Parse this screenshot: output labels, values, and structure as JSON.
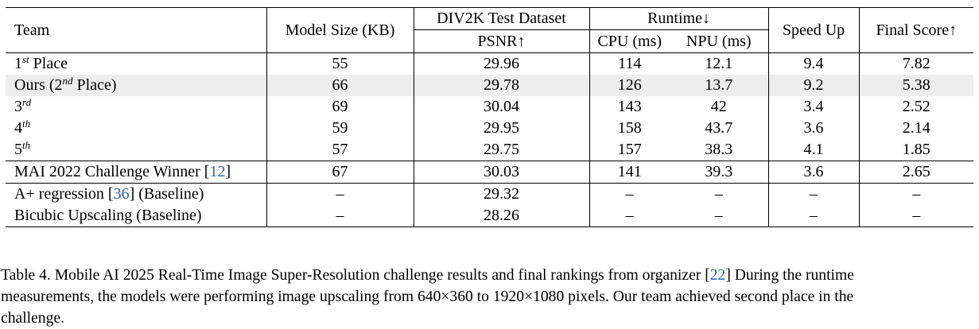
{
  "table": {
    "headers": {
      "team": "Team",
      "model_size": "Model Size (KB)",
      "dataset": "DIV2K Test Dataset",
      "psnr": "PSNR↑",
      "runtime": "Runtime↓",
      "cpu": "CPU (ms)",
      "npu": "NPU (ms)",
      "speed_up": "Speed Up",
      "final_score": "Final Score↑"
    },
    "rows": [
      {
        "team_base": "1",
        "team_sup": "st",
        "team_suffix": " Place",
        "size": "55",
        "psnr": "29.96",
        "cpu": "114",
        "npu": "12.1",
        "speed": "9.4",
        "score": "7.82"
      },
      {
        "team_base": "Ours (2",
        "team_sup": "nd",
        "team_suffix": " Place)",
        "size": "66",
        "psnr": "29.78",
        "cpu": "126",
        "npu": "13.7",
        "speed": "9.2",
        "score": "5.38"
      },
      {
        "team_base": "3",
        "team_sup": "rd",
        "team_suffix": "",
        "size": "69",
        "psnr": "30.04",
        "cpu": "143",
        "npu": "42",
        "speed": "3.4",
        "score": "2.52"
      },
      {
        "team_base": "4",
        "team_sup": "th",
        "team_suffix": "",
        "size": "59",
        "psnr": "29.95",
        "cpu": "158",
        "npu": "43.7",
        "speed": "3.6",
        "score": "2.14"
      },
      {
        "team_base": "5",
        "team_sup": "th",
        "team_suffix": "",
        "size": "57",
        "psnr": "29.75",
        "cpu": "157",
        "npu": "38.3",
        "speed": "4.1",
        "score": "1.85"
      },
      {
        "team_pre": "MAI 2022 Challenge Winner [",
        "team_cite": "12",
        "team_post": "]",
        "size": "67",
        "psnr": "30.03",
        "cpu": "141",
        "npu": "39.3",
        "speed": "3.6",
        "score": "2.65"
      },
      {
        "team_pre": "A+ regression [",
        "team_cite": "36",
        "team_post": "] (Baseline)",
        "size": "–",
        "psnr": "29.32",
        "cpu": "–",
        "npu": "–",
        "speed": "–",
        "score": "–"
      },
      {
        "team_pre": "Bicubic Upscaling (Baseline)",
        "team_cite": "",
        "team_post": "",
        "size": "–",
        "psnr": "28.26",
        "cpu": "–",
        "npu": "–",
        "speed": "–",
        "score": "–"
      }
    ]
  },
  "caption": {
    "line1_pre": "Table 4. Mobile AI 2025 Real-Time Image Super-Resolution challenge results and final rankings from organizer [",
    "line1_cite": "22",
    "line1_post": "] During the runtime",
    "line2": "measurements, the models were performing image upscaling from 640×360 to 1920×1080 pixels. Our team achieved second place in the",
    "line3": "challenge."
  }
}
